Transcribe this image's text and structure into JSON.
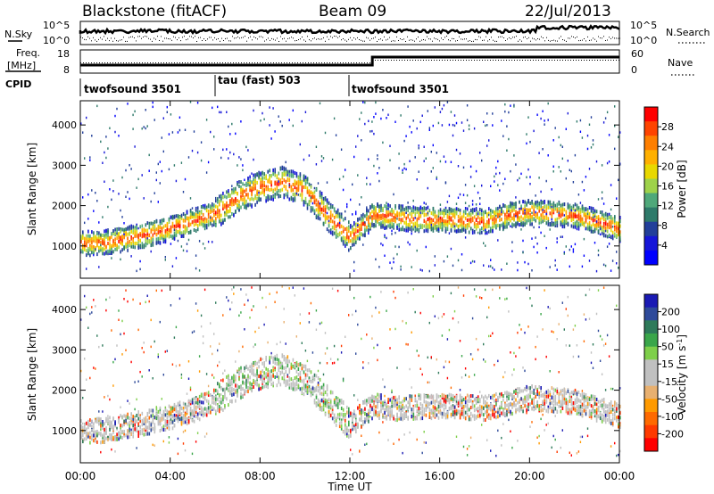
{
  "header": {
    "station": "Blackstone (fitACF)",
    "beam": "Beam 09",
    "date": "22/Jul/2013"
  },
  "noise_panel": {
    "left_label": "N.Sky",
    "right_label": "N.Search",
    "tick_top_left": "10^5",
    "tick_bottom_left": "10^0",
    "tick_top_right": "10^5",
    "tick_bottom_right": "10^0"
  },
  "freq_panel": {
    "left_label_line1": "Freq.",
    "left_label_line2": "[MHz]",
    "right_label": "Nave",
    "left_ticks": [
      "18",
      "8"
    ],
    "right_ticks": [
      "60",
      "0"
    ]
  },
  "cpid": {
    "label": "CPID",
    "segments": [
      {
        "name": "twofsound 3501",
        "start_h": 0,
        "end_h": 6
      },
      {
        "name": "tau (fast) 503",
        "start_h": 6,
        "end_h": 12
      },
      {
        "name": "twofsound 3501",
        "start_h": 12,
        "end_h": 24
      }
    ]
  },
  "power_colorbar": {
    "label": "Power [dB]",
    "ticks": [
      "28",
      "24",
      "20",
      "16",
      "12",
      "8",
      "4"
    ],
    "colors": [
      "#ff0000",
      "#ff4400",
      "#ff7f00",
      "#ffb000",
      "#e8d800",
      "#9ed24a",
      "#4fa87a",
      "#2e7a6a",
      "#223f9a",
      "#1616d8",
      "#0000ff"
    ]
  },
  "velocity_colorbar": {
    "label_main": "Velocity [m s",
    "label_sup": "-1",
    "label_end": "]",
    "ticks": [
      "200",
      "100",
      "50",
      "15",
      "-15",
      "-50",
      "-100",
      "-200"
    ],
    "colors": [
      "#1a1ab4",
      "#2e4a9a",
      "#2e7a5a",
      "#3aa64a",
      "#7ecf4a",
      "#c0c0c0",
      "#c0c0c0",
      "#e8b070",
      "#ff9a00",
      "#ff6a00",
      "#ff3a00",
      "#ff0000"
    ]
  },
  "axes": {
    "ylabel": "Slant Range [km]",
    "xlabel": "Time UT",
    "y_ticks": [
      "1000",
      "2000",
      "3000",
      "4000"
    ],
    "x_ticks": [
      "00:00",
      "04:00",
      "08:00",
      "12:00",
      "16:00",
      "20:00",
      "00:00"
    ]
  },
  "chart_data": [
    {
      "type": "heatmap",
      "name": "Power",
      "xlabel": "Time UT",
      "ylabel": "Slant Range [km]",
      "xlim": [
        0,
        24
      ],
      "ylim": [
        200,
        4600
      ],
      "x_tick_values": [
        0,
        4,
        8,
        12,
        16,
        20,
        24
      ],
      "y_tick_values": [
        1000,
        2000,
        3000,
        4000
      ],
      "colorbar": {
        "label": "Power [dB]",
        "range": [
          0,
          32
        ],
        "ticks": [
          4,
          8,
          12,
          16,
          20,
          24,
          28
        ]
      },
      "echo_band_center_km": [
        [
          0.0,
          1100
        ],
        [
          1.0,
          1120
        ],
        [
          2.0,
          1220
        ],
        [
          3.0,
          1330
        ],
        [
          4.0,
          1480
        ],
        [
          5.0,
          1650
        ],
        [
          6.0,
          1850
        ],
        [
          6.5,
          2050
        ],
        [
          7.0,
          2250
        ],
        [
          8.0,
          2500
        ],
        [
          9.0,
          2620
        ],
        [
          10.0,
          2400
        ],
        [
          11.0,
          1800
        ],
        [
          12.0,
          1250
        ],
        [
          13.0,
          1800
        ],
        [
          14.0,
          1750
        ],
        [
          15.0,
          1700
        ],
        [
          16.0,
          1700
        ],
        [
          17.0,
          1680
        ],
        [
          18.0,
          1650
        ],
        [
          19.0,
          1800
        ],
        [
          20.0,
          1880
        ],
        [
          21.0,
          1850
        ],
        [
          22.0,
          1780
        ],
        [
          23.0,
          1650
        ],
        [
          24.0,
          1450
        ]
      ]
    },
    {
      "type": "heatmap",
      "name": "Velocity",
      "xlabel": "Time UT",
      "ylabel": "Slant Range [km]",
      "xlim": [
        0,
        24
      ],
      "ylim": [
        200,
        4600
      ],
      "x_tick_values": [
        0,
        4,
        8,
        12,
        16,
        20,
        24
      ],
      "y_tick_values": [
        1000,
        2000,
        3000,
        4000
      ],
      "colorbar": {
        "label": "Velocity [m s-1]",
        "range": [
          -250,
          250
        ],
        "ticks": [
          -200,
          -100,
          -50,
          -15,
          15,
          50,
          100,
          200
        ]
      },
      "echo_band_center_km": [
        [
          0.0,
          1000
        ],
        [
          1.0,
          1050
        ],
        [
          2.0,
          1150
        ],
        [
          3.0,
          1250
        ],
        [
          4.0,
          1380
        ],
        [
          5.0,
          1550
        ],
        [
          6.0,
          1800
        ],
        [
          7.0,
          2200
        ],
        [
          8.0,
          2450
        ],
        [
          9.0,
          2550
        ],
        [
          10.0,
          2300
        ],
        [
          11.0,
          1750
        ],
        [
          12.0,
          1200
        ],
        [
          13.0,
          1650
        ],
        [
          14.0,
          1600
        ],
        [
          16.0,
          1650
        ],
        [
          18.0,
          1600
        ],
        [
          20.0,
          1850
        ],
        [
          22.0,
          1750
        ],
        [
          24.0,
          1400
        ]
      ]
    }
  ]
}
